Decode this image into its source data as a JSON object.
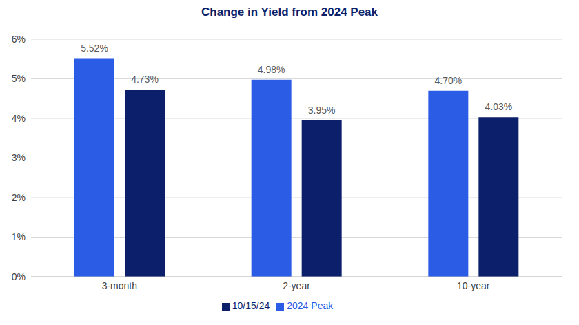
{
  "chart_data": {
    "type": "bar",
    "title": "Change in Yield from 2024 Peak",
    "categories": [
      "3-month",
      "2-year",
      "10-year"
    ],
    "series": [
      {
        "name": "2024 Peak",
        "color": "#2B5CE6",
        "values": [
          5.52,
          4.98,
          4.7
        ],
        "value_labels": [
          "5.52%",
          "4.98%",
          "4.70%"
        ]
      },
      {
        "name": "10/15/24",
        "color": "#0B1F6B",
        "values": [
          4.73,
          3.95,
          4.03
        ],
        "value_labels": [
          "4.73%",
          "3.95%",
          "4.03%"
        ]
      }
    ],
    "ylim": [
      0,
      6
    ],
    "yticks": [
      {
        "value": 0,
        "label": "0%"
      },
      {
        "value": 1,
        "label": "1%"
      },
      {
        "value": 2,
        "label": "2%"
      },
      {
        "value": 3,
        "label": "3%"
      },
      {
        "value": 4,
        "label": "4%"
      },
      {
        "value": 5,
        "label": "5%"
      },
      {
        "value": 6,
        "label": "6%"
      }
    ],
    "grid": true,
    "legend": "bottom",
    "data_labels": true
  }
}
